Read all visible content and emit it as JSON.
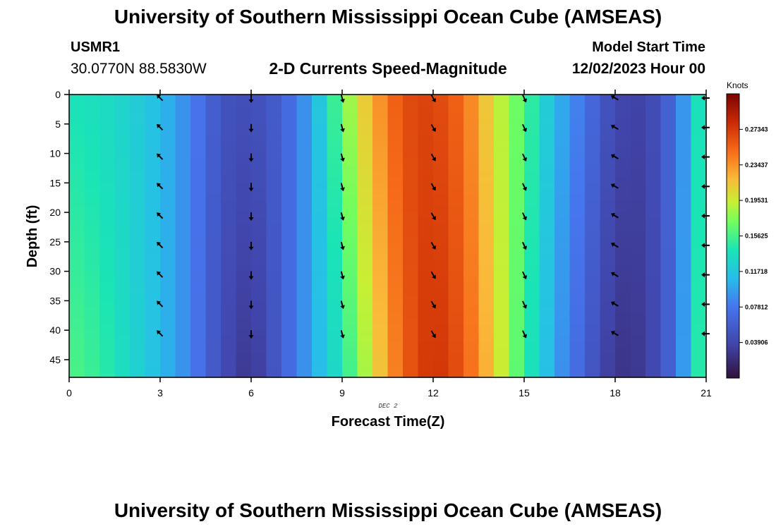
{
  "header": {
    "title": "University of Southern Mississippi Ocean Cube (AMSEAS)",
    "station_id": "USMR1",
    "station_coords": "30.0770N  88.5830W",
    "subtitle": "2-D Currents Speed-Magnitude",
    "model_start_label": "Model Start Time",
    "model_start_value": "12/02/2023 Hour 00"
  },
  "footer": {
    "title": "University of Southern Mississippi Ocean Cube (AMSEAS)"
  },
  "chart_data": {
    "type": "heatmap",
    "title": "2-D Currents Speed-Magnitude",
    "xlabel": "Forecast Time(Z)",
    "ylabel": "Depth (ft)",
    "date_label": "DEC 2",
    "x_ticks": [
      0,
      3,
      6,
      9,
      12,
      15,
      18,
      21
    ],
    "x_tick_labels": [
      "0",
      "3",
      "6",
      "9",
      "12",
      "15",
      "18",
      "21"
    ],
    "y_ticks": [
      0,
      5,
      10,
      15,
      20,
      25,
      30,
      35,
      40,
      45
    ],
    "y_tick_labels": [
      "0",
      "5",
      "10",
      "15",
      "20",
      "25",
      "30",
      "35",
      "40",
      "45"
    ],
    "xlim": [
      0,
      21
    ],
    "ylim": [
      0,
      48
    ],
    "colorbar": {
      "unit": "Knots",
      "min": 0.0,
      "max": 0.3125,
      "ticks": [
        0.27343,
        0.23437,
        0.19531,
        0.15625,
        0.11718,
        0.07812,
        0.03906
      ],
      "tick_labels": [
        "0.27343",
        "0.23437",
        "0.19531",
        "0.15625",
        "0.11718",
        "0.07812",
        "0.03906"
      ]
    },
    "speed_profile_knots": {
      "hours": [
        0,
        1,
        2,
        3,
        4,
        5,
        6,
        7,
        8,
        9,
        10,
        11,
        12,
        13,
        14,
        15,
        16,
        17,
        18,
        19,
        20,
        21
      ],
      "near_surface": [
        0.14,
        0.135,
        0.125,
        0.11,
        0.085,
        0.05,
        0.045,
        0.06,
        0.1,
        0.17,
        0.225,
        0.265,
        0.27,
        0.25,
        0.2,
        0.16,
        0.11,
        0.075,
        0.04,
        0.035,
        0.07,
        0.16
      ],
      "near_bottom": [
        0.16,
        0.15,
        0.13,
        0.11,
        0.085,
        0.045,
        0.025,
        0.06,
        0.1,
        0.14,
        0.2,
        0.255,
        0.28,
        0.26,
        0.21,
        0.15,
        0.1,
        0.06,
        0.025,
        0.03,
        0.07,
        0.17
      ]
    },
    "vector_depths_ft": [
      0,
      5,
      10,
      15,
      20,
      25,
      30,
      35,
      40
    ],
    "vector_hours": [
      3,
      6,
      9,
      12,
      15,
      18,
      21
    ],
    "vector_direction_deg_from_north": [
      315,
      180,
      165,
      150,
      155,
      300,
      270
    ]
  }
}
